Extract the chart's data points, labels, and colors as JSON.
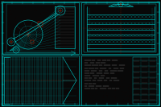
{
  "bg_color": "#080808",
  "fig_width": 2.0,
  "fig_height": 1.33,
  "dpi": 100,
  "colors": {
    "bg": "#080808",
    "cyan": "#00CCCC",
    "cyan2": "#009999",
    "red": "#CC2200",
    "white": "#CCCCCC",
    "yellow": "#AAAA00",
    "dot": "#660000"
  }
}
